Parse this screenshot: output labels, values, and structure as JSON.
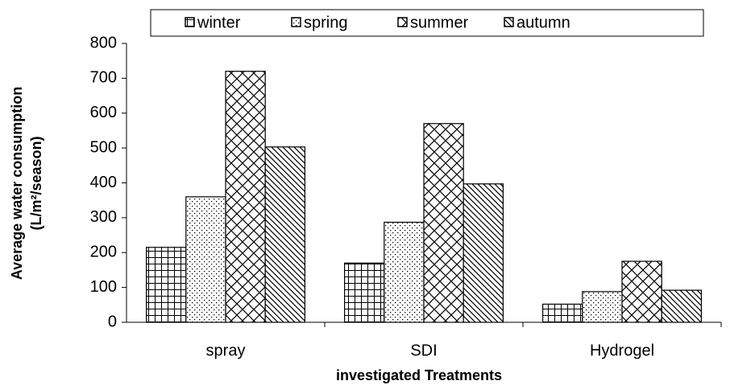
{
  "chart_data": {
    "type": "bar",
    "x_label": "investigated Treatments",
    "y_label": [
      "Average water consumption",
      "(L/m²/season)"
    ],
    "categories": [
      "spray",
      "SDI",
      "Hydrogel"
    ],
    "series": [
      {
        "name": "winter",
        "color": "#000000",
        "pattern": "squares",
        "values": [
          215,
          170,
          52
        ]
      },
      {
        "name": "spring",
        "color": "#000000",
        "pattern": "dots",
        "values": [
          360,
          287,
          88
        ]
      },
      {
        "name": "summer",
        "color": "#000000",
        "pattern": "crosshatch",
        "values": [
          720,
          570,
          175
        ]
      },
      {
        "name": "autumn",
        "color": "#000000",
        "pattern": "diagonal",
        "values": [
          503,
          397,
          92
        ]
      }
    ],
    "ylim": [
      0,
      800
    ],
    "yticks": [
      0,
      100,
      200,
      300,
      400,
      500,
      600,
      700,
      800
    ],
    "legend": "top",
    "grid": false
  }
}
